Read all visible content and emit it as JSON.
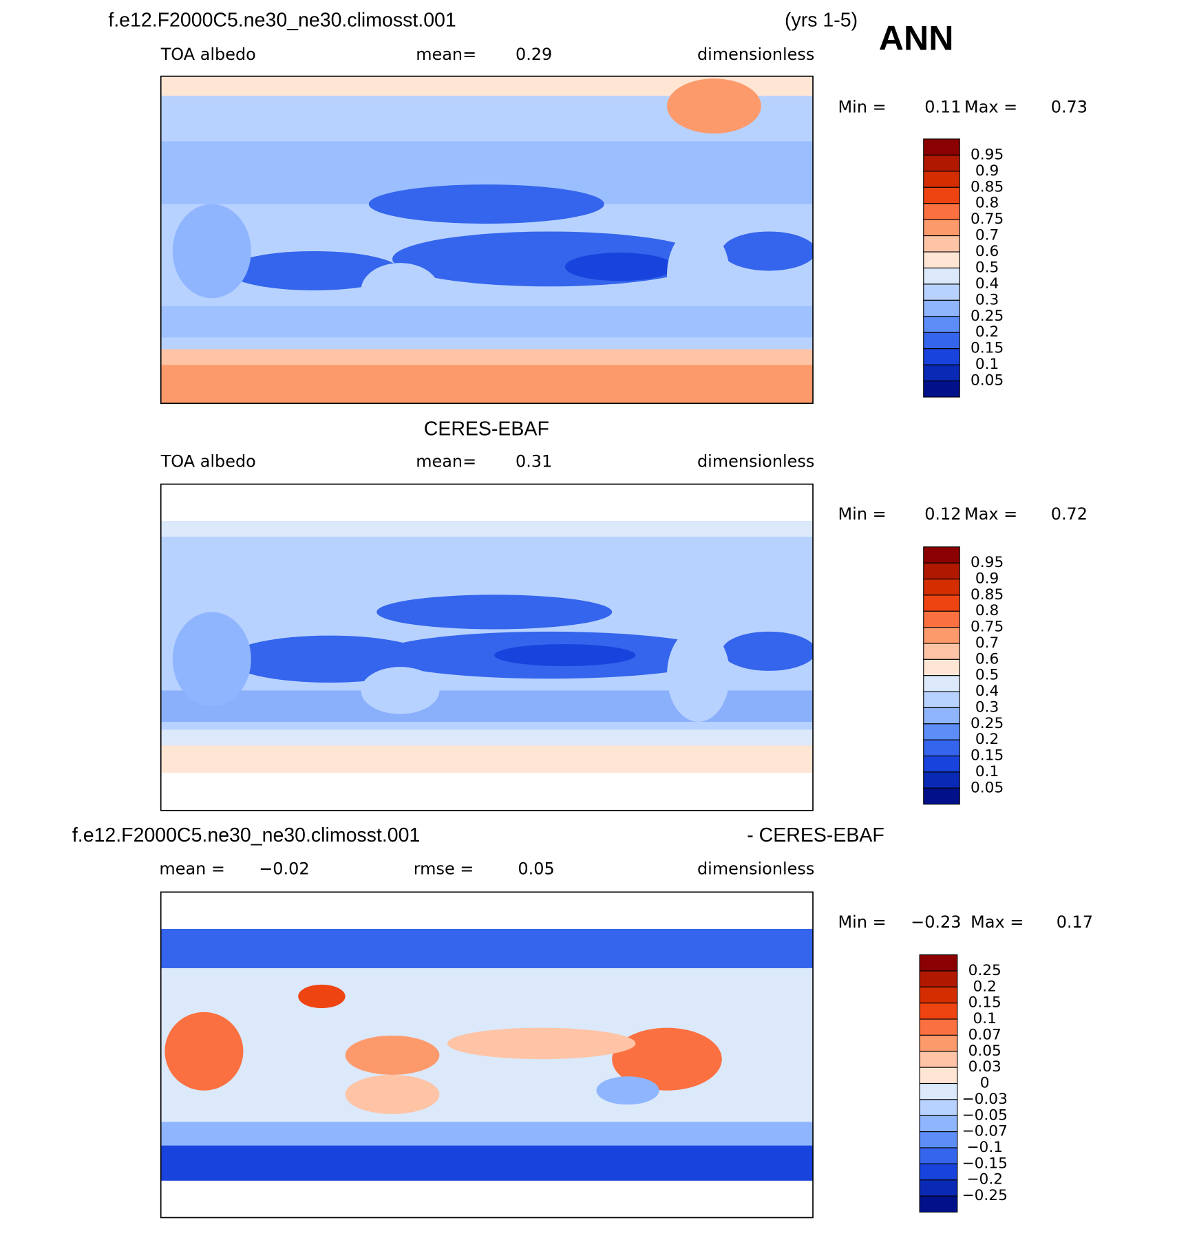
{
  "header": {
    "case": "f.e12.F2000C5.ne30_ne30.climosst.001",
    "years": "(yrs 1-5)",
    "season": "ANN"
  },
  "panels": [
    {
      "variable": "TOA albedo",
      "mean_label": "mean=",
      "mean": "0.29",
      "units": "dimensionless",
      "min_label": "Min =",
      "min": "0.11",
      "max_label": "Max =",
      "max": "0.73",
      "colorbar": {
        "labels": [
          "0.95",
          "0.9",
          "0.85",
          "0.8",
          "0.75",
          "0.7",
          "0.6",
          "0.5",
          "0.4",
          "0.3",
          "0.25",
          "0.2",
          "0.15",
          "0.1",
          "0.05"
        ],
        "colors": [
          "#8b0000",
          "#b01800",
          "#d42e00",
          "#ee4412",
          "#fb7040",
          "#fd9a6c",
          "#ffc4a6",
          "#ffe6d4",
          "#dbe9fb",
          "#b8d2ff",
          "#8fb5ff",
          "#5d8ef8",
          "#3465ec",
          "#1843dc",
          "#0a29b4",
          "#00118a"
        ]
      }
    },
    {
      "title": "CERES-EBAF",
      "variable": "TOA albedo",
      "mean_label": "mean=",
      "mean": "0.31",
      "units": "dimensionless",
      "min_label": "Min =",
      "min": "0.12",
      "max_label": "Max =",
      "max": "0.72",
      "colorbar": {
        "labels": [
          "0.95",
          "0.9",
          "0.85",
          "0.8",
          "0.75",
          "0.7",
          "0.6",
          "0.5",
          "0.4",
          "0.3",
          "0.25",
          "0.2",
          "0.15",
          "0.1",
          "0.05"
        ],
        "colors": [
          "#8b0000",
          "#b01800",
          "#d42e00",
          "#ee4412",
          "#fb7040",
          "#fd9a6c",
          "#ffc4a6",
          "#ffe6d4",
          "#dbe9fb",
          "#b8d2ff",
          "#8fb5ff",
          "#5d8ef8",
          "#3465ec",
          "#1843dc",
          "#0a29b4",
          "#00118a"
        ]
      }
    },
    {
      "title": "f.e12.F2000C5.ne30_ne30.climosst.001",
      "title_right": "- CERES-EBAF",
      "mean_label": "mean =",
      "mean": "−0.02",
      "rmse_label": "rmse =",
      "rmse": "0.05",
      "units": "dimensionless",
      "min_label": "Min =",
      "min": "−0.23",
      "max_label": "Max =",
      "max": "0.17",
      "colorbar": {
        "labels": [
          "0.25",
          "0.2",
          "0.15",
          "0.1",
          "0.07",
          "0.05",
          "0.03",
          "0",
          "−0.03",
          "−0.05",
          "−0.07",
          "−0.1",
          "−0.15",
          "−0.2",
          "−0.25"
        ],
        "colors": [
          "#8b0000",
          "#b01800",
          "#d42e00",
          "#ee4412",
          "#fb7040",
          "#fd9a6c",
          "#ffc4a6",
          "#ffe6d4",
          "#dbe9fb",
          "#b8d2ff",
          "#8fb5ff",
          "#5d8ef8",
          "#3465ec",
          "#1843dc",
          "#0a29b4",
          "#00118a"
        ]
      }
    }
  ]
}
